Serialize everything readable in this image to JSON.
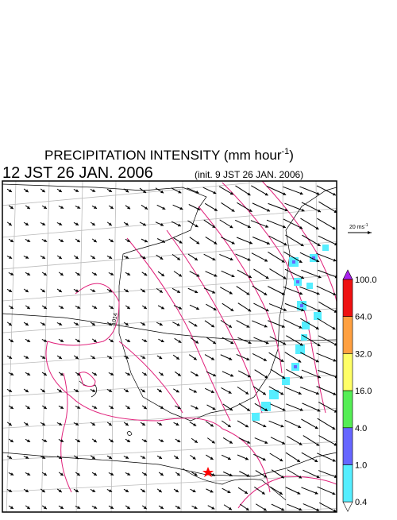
{
  "header": {
    "title": [
      "PRECIPITATION INTENSITY (mm hour",
      "-1",
      ")"
    ],
    "time": "12 JST 26 JAN. 2006",
    "init": "(init. 9 JST 26 JAN. 2006)"
  },
  "map": {
    "isobar_label": "1014"
  },
  "wind_scale": {
    "label": [
      "20 ms",
      "-1"
    ]
  },
  "colorbar": {
    "labels": [
      "100.0",
      "64.0",
      "32.0",
      "16.0",
      "4.0",
      "1.0",
      "0.4"
    ],
    "colors": [
      "#aa22ee",
      "#ee1111",
      "#ffa040",
      "#ffff66",
      "#55ee55",
      "#6666ff",
      "#55eeff",
      "#ffffff"
    ]
  }
}
